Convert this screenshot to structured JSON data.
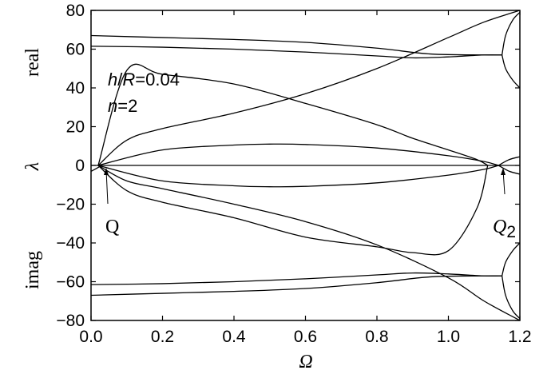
{
  "chart_data": {
    "type": "line",
    "title": "",
    "xlabel": "Ω",
    "ylabel": "λ",
    "ylabel_top": "real",
    "ylabel_bottom": "imag",
    "xlim": [
      0.0,
      1.2
    ],
    "ylim": [
      -80,
      80
    ],
    "x_ticks": [
      0.0,
      0.2,
      0.4,
      0.6,
      0.8,
      1.0,
      1.2
    ],
    "x_tick_labels": [
      "0.0",
      "0.2",
      "0.4",
      "0.6",
      "0.8",
      "1.0",
      "1.2"
    ],
    "y_ticks": [
      80,
      60,
      40,
      20,
      0,
      -20,
      -40,
      -60,
      -80
    ],
    "y_tick_labels": [
      "80",
      "60",
      "40",
      "20",
      "0",
      "−20",
      "−40",
      "−60",
      "−80"
    ],
    "grid": false,
    "annotations": {
      "params_line1_italic_a": "h",
      "params_line1_slash": "/",
      "params_line1_italic_b": "R",
      "params_line1_value": "=0.04",
      "params_line2_italic": "n",
      "params_line2_value": "=2",
      "point_q": "Q",
      "point_q2": "Q",
      "point_q2_sub": "2"
    },
    "series": [
      {
        "x": [
          0.0,
          0.2,
          0.4,
          0.6,
          0.8,
          0.95,
          1.1,
          1.15
        ],
        "y": [
          67,
          66,
          65,
          63.5,
          60.5,
          57.5,
          57,
          57
        ]
      },
      {
        "x": [
          0.0,
          0.2,
          0.4,
          0.6,
          0.8,
          0.9,
          1.0,
          1.1,
          1.15
        ],
        "y": [
          61.5,
          61,
          60,
          58.5,
          56.5,
          55.5,
          56,
          57,
          57
        ]
      },
      {
        "x": [
          1.15,
          1.16,
          1.18,
          1.2
        ],
        "y": [
          57,
          67,
          75,
          79
        ]
      },
      {
        "x": [
          1.15,
          1.16,
          1.18,
          1.2
        ],
        "y": [
          57,
          50,
          44,
          40
        ]
      },
      {
        "x": [
          0.02,
          0.1,
          0.2,
          0.4,
          0.6,
          0.8,
          1.0,
          1.1,
          1.2
        ],
        "y": [
          0,
          13,
          19,
          27,
          37,
          50,
          66,
          74,
          80
        ]
      },
      {
        "x": [
          0.02,
          0.1,
          0.2,
          0.4,
          0.6,
          0.8,
          0.9,
          1.0,
          1.08,
          1.11
        ],
        "y": [
          0,
          49,
          47,
          42,
          32,
          21,
          14,
          8,
          3,
          0
        ]
      },
      {
        "x": [
          0.02,
          0.2,
          0.4,
          0.5,
          0.6,
          0.8,
          1.0,
          1.1,
          1.14
        ],
        "y": [
          0,
          8,
          10.5,
          11,
          10.8,
          9,
          5,
          2,
          0
        ]
      },
      {
        "x": [
          -0.01,
          0.0,
          0.03
        ],
        "y": [
          -2.5,
          -3,
          0
        ]
      },
      {
        "x": [
          1.14,
          1.17,
          1.2
        ],
        "y": [
          0,
          3,
          4.5
        ]
      },
      {
        "x": [
          0.0,
          1.2
        ],
        "y": [
          0,
          0
        ]
      },
      {
        "x": [
          0.02,
          0.2,
          0.4,
          0.5,
          0.6,
          0.8,
          1.0,
          1.1,
          1.14
        ],
        "y": [
          0,
          -8,
          -10.5,
          -11,
          -10.8,
          -9,
          -5,
          -2,
          0
        ]
      },
      {
        "x": [
          1.14,
          1.17,
          1.2
        ],
        "y": [
          0,
          -3,
          -4.5
        ]
      },
      {
        "x": [
          0.02,
          0.1,
          0.2,
          0.4,
          0.6,
          0.8,
          0.9,
          1.0,
          1.08,
          1.11
        ],
        "y": [
          0,
          -13,
          -19,
          -27,
          -37,
          -42,
          -45,
          -44,
          -22,
          0
        ]
      },
      {
        "x": [
          0.02,
          0.1,
          0.2,
          0.4,
          0.6,
          0.8,
          1.0,
          1.1,
          1.2
        ],
        "y": [
          0,
          -8,
          -12,
          -20,
          -29,
          -41,
          -58,
          -70,
          -80
        ]
      },
      {
        "x": [
          0.0,
          0.2,
          0.4,
          0.6,
          0.8,
          0.9,
          1.0,
          1.1,
          1.15
        ],
        "y": [
          -61.5,
          -61,
          -60,
          -58.5,
          -56.5,
          -55.5,
          -56,
          -57,
          -57
        ]
      },
      {
        "x": [
          0.0,
          0.2,
          0.4,
          0.6,
          0.8,
          0.95,
          1.1,
          1.15
        ],
        "y": [
          -67,
          -66,
          -65,
          -63.5,
          -60.5,
          -57.5,
          -57,
          -57
        ]
      },
      {
        "x": [
          1.15,
          1.16,
          1.18,
          1.2
        ],
        "y": [
          -57,
          -67,
          -75,
          -79
        ]
      },
      {
        "x": [
          1.15,
          1.16,
          1.18,
          1.2
        ],
        "y": [
          -57,
          -50,
          -44,
          -40
        ]
      }
    ]
  }
}
